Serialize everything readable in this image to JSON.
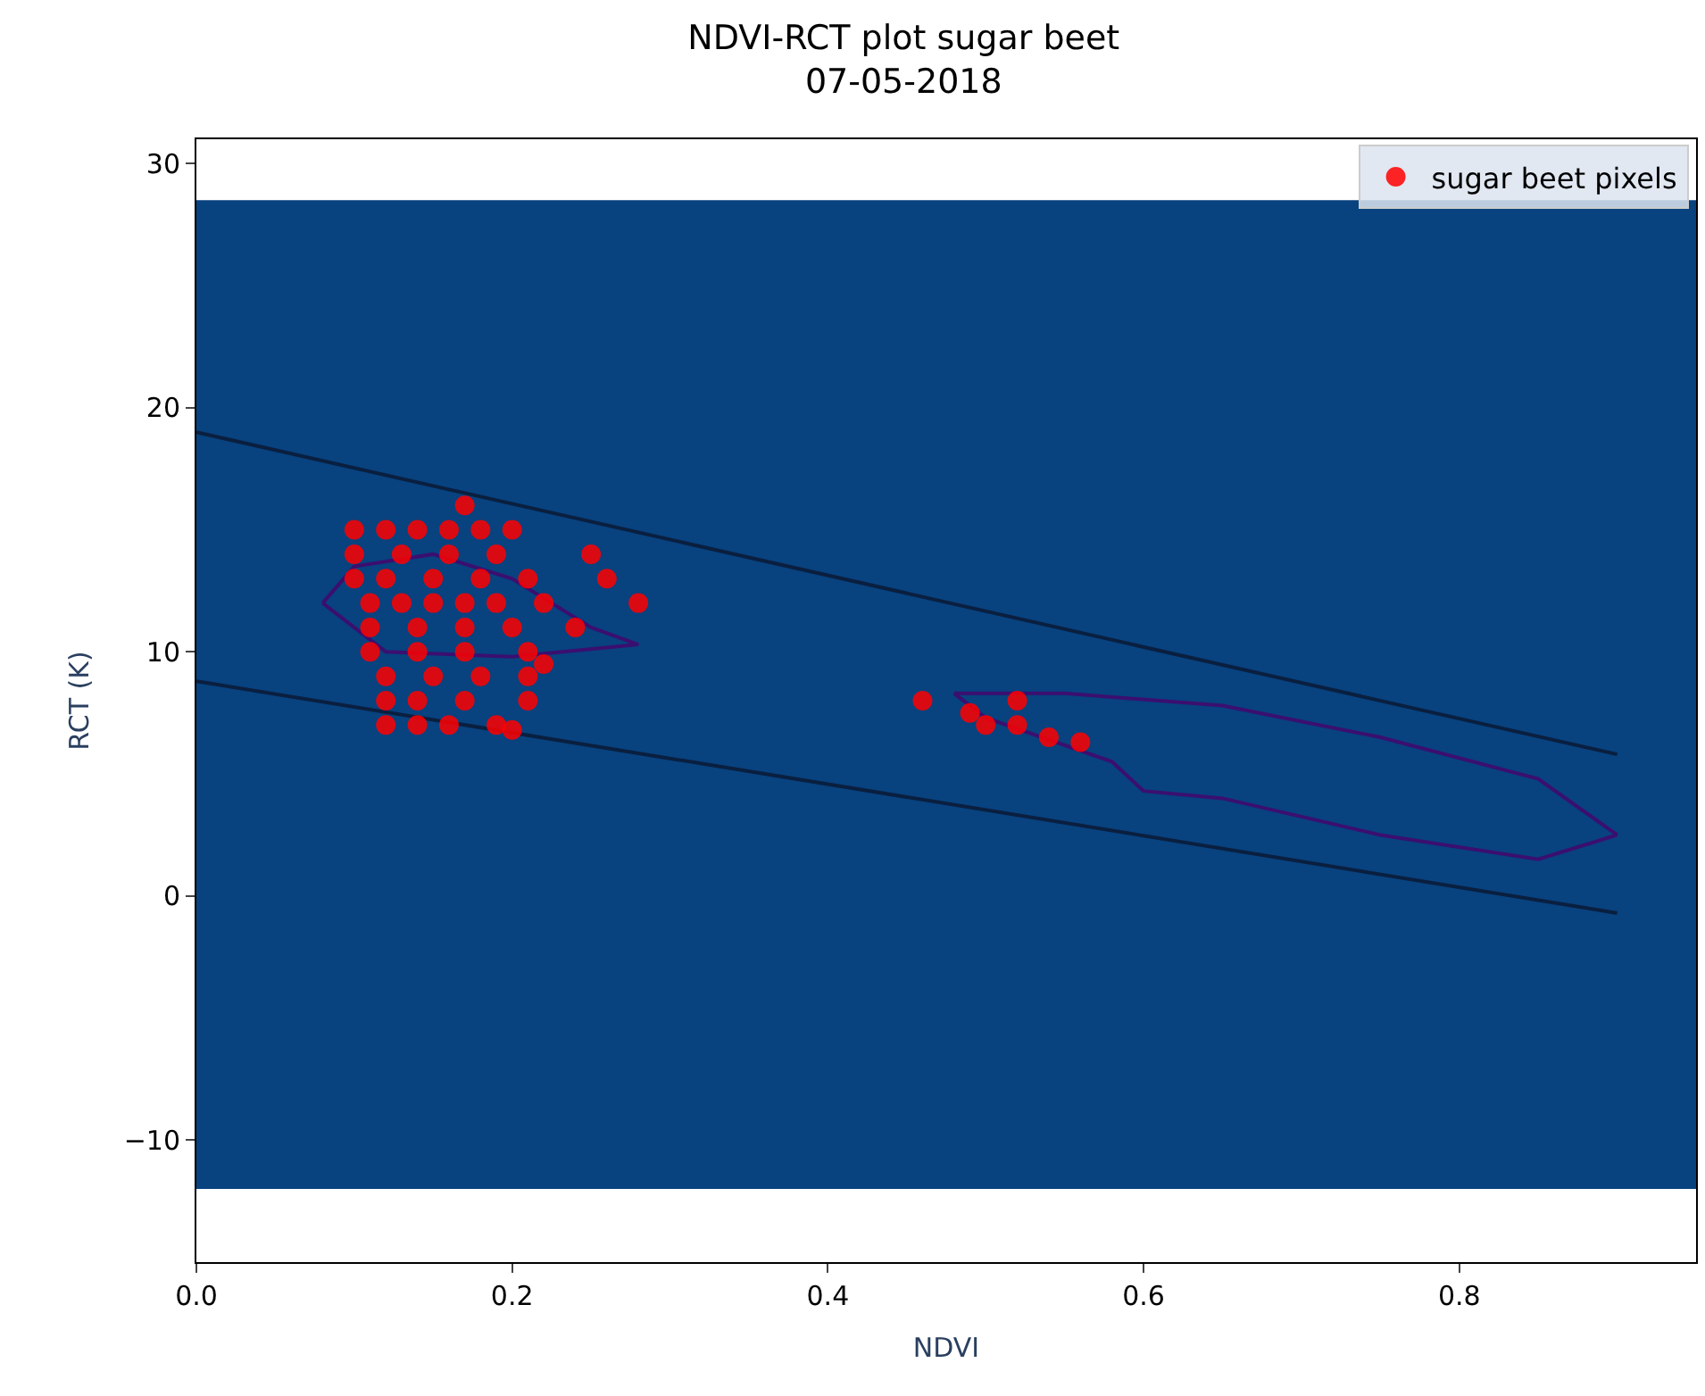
{
  "chart_data": {
    "type": "scatter",
    "title": "NDVI-RCT plot sugar beet",
    "subtitle": "07-05-2018",
    "xlabel": "NDVI",
    "ylabel": "RCT (K)",
    "xlim": [
      0,
      0.95
    ],
    "ylim": [
      -15,
      31
    ],
    "xticks": [
      {
        "value": 0,
        "label": "0.0"
      },
      0.2,
      0.4,
      0.6,
      0.8
    ],
    "yticks": [
      {
        "value": -10,
        "label": "−10"
      },
      0,
      10,
      20,
      30
    ],
    "grid": false,
    "legend": "top right",
    "marker": "circle",
    "bands": [
      {
        "axis": "y",
        "from": -12,
        "to": 28.5,
        "color": "#08427f"
      }
    ],
    "series": [
      {
        "type": "line",
        "marker": "none",
        "color": "#0a1f3f",
        "x": [
          0,
          0.9
        ],
        "values": [
          19,
          5.8
        ]
      },
      {
        "type": "line",
        "marker": "none",
        "color": "#0a1f3f",
        "x": [
          0,
          0.9
        ],
        "values": [
          8.8,
          -0.7
        ]
      },
      {
        "type": "line",
        "marker": "none",
        "color": "#3b0f6f",
        "x": [
          0.08,
          0.1,
          0.15,
          0.2,
          0.25,
          0.28
        ],
        "values": [
          12,
          13.5,
          14,
          13,
          11,
          10.3
        ]
      },
      {
        "type": "line",
        "marker": "none",
        "color": "#3b0f6f",
        "x": [
          0.08,
          0.12,
          0.2,
          0.28
        ],
        "values": [
          12,
          10,
          9.8,
          10.3
        ]
      },
      {
        "type": "line",
        "marker": "none",
        "color": "#3b0f6f",
        "x": [
          0.48,
          0.55,
          0.65,
          0.75,
          0.85,
          0.9
        ],
        "values": [
          8.3,
          8.3,
          7.8,
          6.5,
          4.8,
          2.5
        ]
      },
      {
        "type": "line",
        "marker": "none",
        "color": "#3b0f6f",
        "x": [
          0.48,
          0.5,
          0.58,
          0.6,
          0.65,
          0.75,
          0.85,
          0.9
        ],
        "values": [
          8.3,
          7.3,
          5.5,
          4.3,
          4,
          2.5,
          1.5,
          2.5
        ]
      },
      {
        "name": "sugar beet pixels",
        "color": "#ff0000",
        "x": [
          0.1,
          0.12,
          0.14,
          0.16,
          0.18,
          0.1,
          0.13,
          0.16,
          0.19,
          0.1,
          0.12,
          0.15,
          0.18,
          0.21,
          0.11,
          0.13,
          0.15,
          0.17,
          0.19,
          0.22,
          0.11,
          0.14,
          0.17,
          0.2,
          0.11,
          0.14,
          0.17,
          0.21,
          0.12,
          0.15,
          0.18,
          0.21,
          0.12,
          0.14,
          0.17,
          0.21,
          0.12,
          0.14,
          0.16,
          0.19,
          0.17,
          0.2,
          0.25,
          0.26,
          0.28,
          0.24,
          0.22,
          0.2,
          0.46,
          0.49,
          0.5,
          0.52,
          0.54,
          0.56,
          0.52
        ],
        "values": [
          15,
          15,
          15,
          15,
          15,
          14,
          14,
          14,
          14,
          13,
          13,
          13,
          13,
          13,
          12,
          12,
          12,
          12,
          12,
          12,
          11,
          11,
          11,
          11,
          10,
          10,
          10,
          10,
          9,
          9,
          9,
          9,
          8,
          8,
          8,
          8,
          7,
          7,
          7,
          7,
          16,
          15,
          14,
          13,
          12,
          11,
          9.5,
          6.8,
          8,
          7.5,
          7,
          7,
          6.5,
          6.3,
          8
        ]
      }
    ]
  }
}
